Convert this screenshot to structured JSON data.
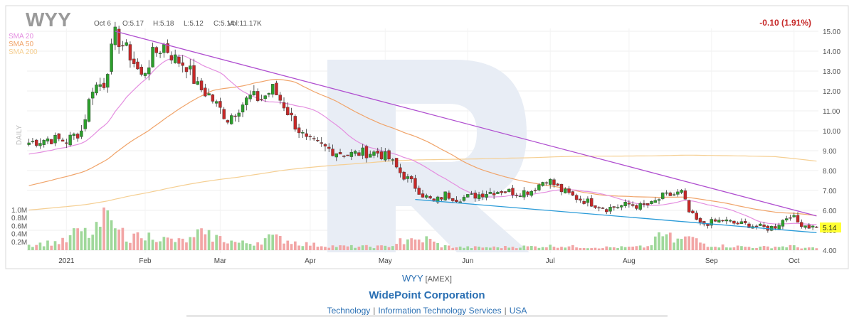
{
  "header": {
    "symbol": "WYY",
    "date": "Oct 6",
    "open": "O:5.17",
    "high": "H:5.18",
    "low": "L:5.12",
    "close": "C:5.14",
    "volume": "Vol:11.17K",
    "change": "-0.10 (1.91%)",
    "interval_label": "DAILY"
  },
  "legend": {
    "sma20": "SMA 20",
    "sma50": "SMA 50",
    "sma200": "SMA 200"
  },
  "colors": {
    "up": "#2ca02c",
    "down": "#c62828",
    "vol_up": "#9fd89a",
    "vol_down": "#f2a5a5",
    "sma20": "#e48ee0",
    "sma50": "#f0a46a",
    "sma200": "#f5cf93",
    "resistance": "#b04fd0",
    "support": "#2a9bd8",
    "watermark": "#e8edf5",
    "change": "#c62828",
    "price_tag": "#ffff33"
  },
  "chart_data": {
    "type": "candlestick",
    "price_axis": {
      "ticks": [
        "15.00",
        "14.00",
        "13.00",
        "12.00",
        "11.00",
        "10.00",
        "9.00",
        "8.00",
        "7.00",
        "6.00",
        "5.00",
        "4.00"
      ],
      "range": [
        4,
        15
      ]
    },
    "volume_axis": {
      "ticks": [
        "1.0M",
        "0.8M",
        "0.6M",
        "0.4M",
        "0.2M"
      ],
      "range": [
        0,
        1.0
      ]
    },
    "x_axis": {
      "labels": [
        "2021",
        "Feb",
        "Mar",
        "Apr",
        "May",
        "Jun",
        "Jul",
        "Aug",
        "Sep",
        "Oct"
      ]
    },
    "last_price": "5.14",
    "anchors": [
      [
        0,
        9.4
      ],
      [
        5,
        9.6
      ],
      [
        10,
        9.5
      ],
      [
        14,
        10.0
      ],
      [
        17,
        12.2
      ],
      [
        20,
        12.4
      ],
      [
        23,
        14.8
      ],
      [
        27,
        13.8
      ],
      [
        30,
        12.7
      ],
      [
        33,
        13.8
      ],
      [
        36,
        14.3
      ],
      [
        39,
        13.6
      ],
      [
        42,
        13.3
      ],
      [
        45,
        12.2
      ],
      [
        48,
        11.8
      ],
      [
        50,
        11.3
      ],
      [
        53,
        10.6
      ],
      [
        56,
        11.2
      ],
      [
        59,
        11.7
      ],
      [
        62,
        11.6
      ],
      [
        65,
        12.1
      ],
      [
        68,
        11.3
      ],
      [
        71,
        10.3
      ],
      [
        74,
        9.5
      ],
      [
        77,
        9.3
      ],
      [
        81,
        9.0
      ],
      [
        85,
        8.8
      ],
      [
        89,
        8.9
      ],
      [
        93,
        8.9
      ],
      [
        96,
        8.6
      ],
      [
        99,
        7.9
      ],
      [
        102,
        7.4
      ],
      [
        105,
        6.8
      ],
      [
        108,
        6.4
      ],
      [
        111,
        6.8
      ],
      [
        114,
        6.6
      ],
      [
        118,
        6.7
      ],
      [
        122,
        6.9
      ],
      [
        126,
        7.0
      ],
      [
        130,
        6.9
      ],
      [
        134,
        7.0
      ],
      [
        138,
        7.6
      ],
      [
        142,
        7.0
      ],
      [
        145,
        6.7
      ],
      [
        148,
        6.5
      ],
      [
        151,
        6.3
      ],
      [
        154,
        6.1
      ],
      [
        157,
        6.2
      ],
      [
        160,
        6.3
      ],
      [
        163,
        6.2
      ],
      [
        166,
        6.3
      ],
      [
        169,
        6.7
      ],
      [
        172,
        6.8
      ],
      [
        174,
        6.9
      ],
      [
        176,
        5.9
      ],
      [
        179,
        5.3
      ],
      [
        182,
        5.4
      ],
      [
        185,
        5.5
      ],
      [
        188,
        5.35
      ],
      [
        191,
        5.3
      ],
      [
        194,
        5.2
      ],
      [
        197,
        5.1
      ],
      [
        199,
        5.2
      ],
      [
        201,
        5.5
      ],
      [
        203,
        5.8
      ],
      [
        205,
        5.4
      ],
      [
        208,
        5.2
      ],
      [
        210,
        5.14
      ]
    ],
    "volume_anchors": [
      [
        0,
        0.15
      ],
      [
        5,
        0.2
      ],
      [
        10,
        0.25
      ],
      [
        13,
        0.55
      ],
      [
        17,
        0.4
      ],
      [
        21,
        1.0
      ],
      [
        23,
        0.6
      ],
      [
        27,
        0.35
      ],
      [
        30,
        0.3
      ],
      [
        33,
        0.45
      ],
      [
        36,
        0.3
      ],
      [
        40,
        0.25
      ],
      [
        44,
        0.3
      ],
      [
        46,
        0.55
      ],
      [
        48,
        0.4
      ],
      [
        52,
        0.3
      ],
      [
        56,
        0.2
      ],
      [
        60,
        0.2
      ],
      [
        64,
        0.35
      ],
      [
        68,
        0.3
      ],
      [
        72,
        0.2
      ],
      [
        76,
        0.15
      ],
      [
        80,
        0.12
      ],
      [
        85,
        0.1
      ],
      [
        90,
        0.1
      ],
      [
        95,
        0.1
      ],
      [
        99,
        0.2
      ],
      [
        103,
        0.25
      ],
      [
        106,
        0.3
      ],
      [
        110,
        0.12
      ],
      [
        115,
        0.08
      ],
      [
        120,
        0.08
      ],
      [
        125,
        0.08
      ],
      [
        130,
        0.1
      ],
      [
        135,
        0.1
      ],
      [
        140,
        0.12
      ],
      [
        145,
        0.1
      ],
      [
        150,
        0.08
      ],
      [
        155,
        0.08
      ],
      [
        160,
        0.08
      ],
      [
        165,
        0.1
      ],
      [
        168,
        0.35
      ],
      [
        170,
        0.45
      ],
      [
        172,
        0.25
      ],
      [
        174,
        0.3
      ],
      [
        176,
        0.35
      ],
      [
        178,
        0.25
      ],
      [
        181,
        0.15
      ],
      [
        185,
        0.12
      ],
      [
        190,
        0.1
      ],
      [
        195,
        0.08
      ],
      [
        199,
        0.1
      ],
      [
        201,
        0.1
      ],
      [
        203,
        0.12
      ],
      [
        205,
        0.08
      ],
      [
        210,
        0.05
      ]
    ],
    "volume_spikes": [
      [
        13,
        0.55
      ],
      [
        21,
        1.0
      ],
      [
        22,
        0.75
      ],
      [
        23,
        0.55
      ],
      [
        29,
        0.45
      ],
      [
        30,
        0.3
      ],
      [
        46,
        0.55
      ],
      [
        47,
        0.4
      ],
      [
        64,
        0.4
      ],
      [
        99,
        0.3
      ],
      [
        102,
        0.3
      ],
      [
        106,
        0.35
      ],
      [
        168,
        0.45
      ],
      [
        170,
        0.4
      ],
      [
        176,
        0.35
      ],
      [
        178,
        0.3
      ]
    ],
    "trendlines": [
      {
        "name": "resistance",
        "from": [
          23,
          15.0
        ],
        "to": [
          210,
          5.72
        ]
      },
      {
        "name": "support",
        "from": [
          103,
          6.55
        ],
        "to": [
          210,
          4.88
        ]
      }
    ]
  },
  "footer": {
    "ticker": "WYY",
    "exchange": "[AMEX]",
    "company": "WidePoint Corporation",
    "sector": "Technology",
    "industry": "Information Technology Services",
    "country": "USA"
  }
}
